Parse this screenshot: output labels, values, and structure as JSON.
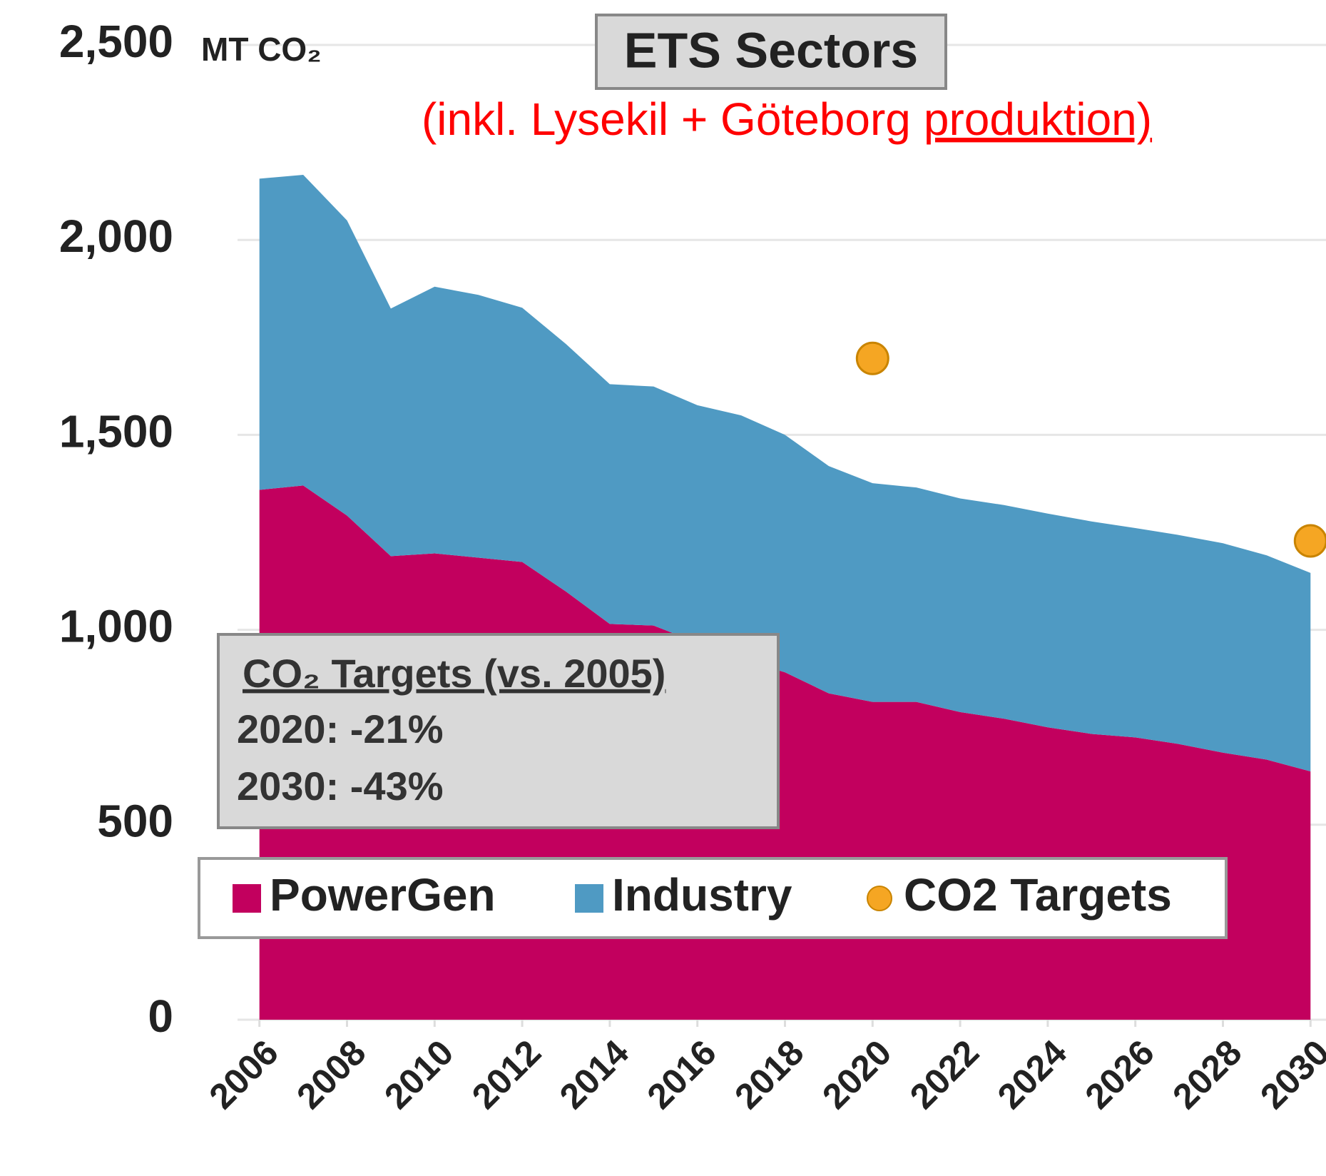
{
  "chart_data": {
    "type": "area",
    "title": "ETS Sectors",
    "subtitle": [
      "(inkl. Lysekil + Göteborg",
      "produktion)"
    ],
    "unit_label": "MT CO₂",
    "annotation": [
      "CO₂ Targets (vs. 2005)",
      "2020: -21%",
      "2030: -43%"
    ],
    "x": [
      2006,
      2007,
      2008,
      2009,
      2010,
      2011,
      2012,
      2013,
      2014,
      2015,
      2016,
      2017,
      2018,
      2019,
      2020,
      2021,
      2022,
      2023,
      2024,
      2025,
      2026,
      2027,
      2028,
      2029,
      2030
    ],
    "series": [
      {
        "name": "PowerGen",
        "type": "area",
        "color": "#c2005e",
        "values": [
          1359,
          1370,
          1293,
          1189,
          1196,
          1185,
          1174,
          1098,
          1015,
          1011,
          967,
          924,
          891,
          837,
          815,
          815,
          789,
          772,
          750,
          733,
          724,
          707,
          685,
          667,
          637
        ]
      },
      {
        "name": "Industry",
        "type": "area",
        "color": "#4f9ac3",
        "values": [
          798,
          797,
          757,
          635,
          684,
          674,
          652,
          635,
          615,
          613,
          609,
          626,
          609,
          583,
          561,
          550,
          548,
          548,
          548,
          545,
          537,
          536,
          537,
          524,
          509
        ]
      },
      {
        "name": "CO2 Targets",
        "type": "scatter",
        "color": "#f5a623",
        "values": [
          null,
          null,
          null,
          null,
          null,
          null,
          null,
          null,
          null,
          null,
          null,
          null,
          null,
          null,
          1696,
          null,
          null,
          null,
          null,
          null,
          null,
          null,
          null,
          null,
          1228
        ]
      }
    ],
    "xlim": [
      2005.5,
      2030.5
    ],
    "xticks": [
      2006,
      2008,
      2010,
      2012,
      2014,
      2016,
      2018,
      2020,
      2022,
      2024,
      2026,
      2028,
      2030
    ],
    "ylim": [
      0,
      2500
    ],
    "yticks": [
      0,
      500,
      {
        "value": 1000,
        "label": "1,000"
      },
      {
        "value": 1500,
        "label": "1,500"
      },
      {
        "value": 2000,
        "label": "2,000"
      },
      {
        "value": 2500,
        "label": "2,500"
      }
    ],
    "grid": true,
    "legend": "lower center"
  }
}
